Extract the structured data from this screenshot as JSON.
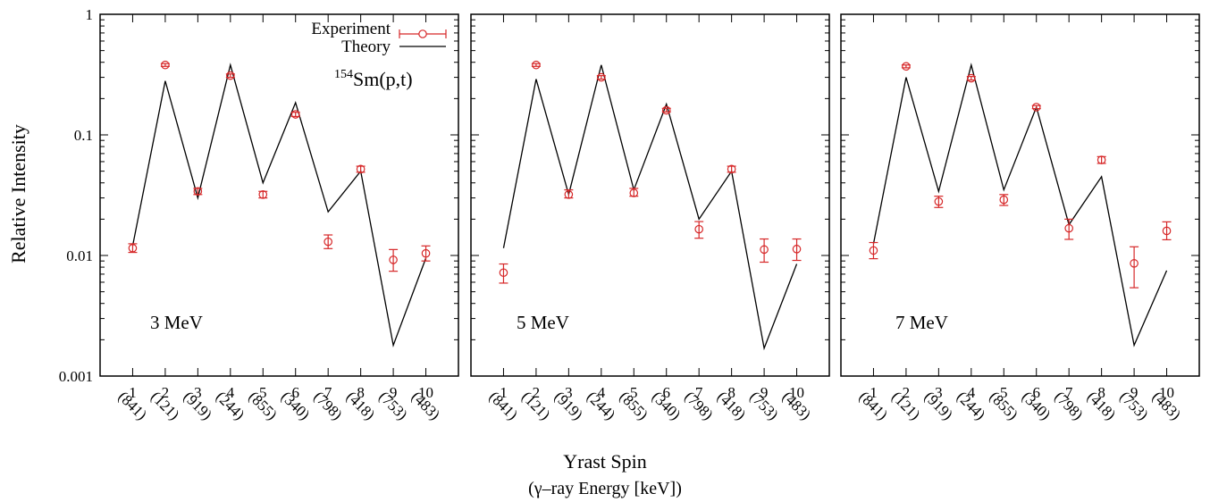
{
  "figure": {
    "ylabel": "Relative Intensity",
    "xlabel": "Yrast Spin",
    "xlabel2": "(γ–ray Energy [keV])",
    "legend": {
      "experiment": "Experiment",
      "theory": "Theory"
    },
    "reaction": {
      "sup": "154",
      "rest": "Sm(p,t)"
    },
    "colors": {
      "experiment": "#d62728",
      "theory": "#000000",
      "axes": "#000000"
    }
  },
  "chart_data": [
    {
      "type": "line",
      "label": "3 MeV",
      "yscale": "log",
      "ylim": [
        0.001,
        1
      ],
      "yticks": [
        "0.001",
        "0.01",
        "0.1",
        "1"
      ],
      "xlim": [
        0,
        11
      ],
      "x": [
        1,
        2,
        3,
        4,
        5,
        6,
        7,
        8,
        9,
        10
      ],
      "xticklabels": [
        "1",
        "2",
        "3",
        "4",
        "5",
        "6",
        "7",
        "8",
        "9",
        "10"
      ],
      "energies": [
        "(841)",
        "(121)",
        "(919)",
        "(244)",
        "(855)",
        "(340)",
        "(798)",
        "(418)",
        "(753)",
        "(483)"
      ],
      "series": [
        {
          "name": "Experiment",
          "style": "points-errorbars",
          "values": [
            0.0115,
            0.38,
            0.034,
            0.31,
            0.032,
            0.148,
            0.013,
            0.052,
            0.0092,
            0.0104
          ],
          "errors": [
            [
              0.0106,
              0.0125
            ],
            [
              0.37,
              0.39
            ],
            [
              0.032,
              0.036
            ],
            [
              0.3,
              0.32
            ],
            [
              0.03,
              0.034
            ],
            [
              0.142,
              0.154
            ],
            [
              0.0114,
              0.0148
            ],
            [
              0.049,
              0.055
            ],
            [
              0.0074,
              0.0112
            ],
            [
              0.009,
              0.012
            ]
          ]
        },
        {
          "name": "Theory",
          "style": "line",
          "values": [
            0.012,
            0.28,
            0.03,
            0.38,
            0.04,
            0.185,
            0.023,
            0.05,
            0.0018,
            0.0095
          ]
        }
      ]
    },
    {
      "type": "line",
      "label": "5 MeV",
      "yscale": "log",
      "ylim": [
        0.001,
        1
      ],
      "yticks": [
        "0.001",
        "0.01",
        "0.1",
        "1"
      ],
      "xlim": [
        0,
        11
      ],
      "x": [
        1,
        2,
        3,
        4,
        5,
        6,
        7,
        8,
        9,
        10
      ],
      "xticklabels": [
        "1",
        "2",
        "3",
        "4",
        "5",
        "6",
        "7",
        "8",
        "9",
        "10"
      ],
      "energies": [
        "(841)",
        "(121)",
        "(919)",
        "(244)",
        "(855)",
        "(340)",
        "(798)",
        "(418)",
        "(753)",
        "(483)"
      ],
      "series": [
        {
          "name": "Experiment",
          "style": "points-errorbars",
          "values": [
            0.0072,
            0.38,
            0.032,
            0.3,
            0.033,
            0.16,
            0.0165,
            0.052,
            0.0112,
            0.0113
          ],
          "errors": [
            [
              0.0059,
              0.0085
            ],
            [
              0.37,
              0.39
            ],
            [
              0.03,
              0.035
            ],
            [
              0.29,
              0.31
            ],
            [
              0.031,
              0.036
            ],
            [
              0.155,
              0.166
            ],
            [
              0.0139,
              0.0191
            ],
            [
              0.049,
              0.055
            ],
            [
              0.0088,
              0.0137
            ],
            [
              0.0091,
              0.0137
            ]
          ]
        },
        {
          "name": "Theory",
          "style": "line",
          "values": [
            0.0115,
            0.29,
            0.032,
            0.38,
            0.035,
            0.18,
            0.02,
            0.05,
            0.0017,
            0.0085
          ]
        }
      ]
    },
    {
      "type": "line",
      "label": "7 MeV",
      "yscale": "log",
      "ylim": [
        0.001,
        1
      ],
      "yticks": [
        "0.001",
        "0.01",
        "0.1",
        "1"
      ],
      "xlim": [
        0,
        11
      ],
      "x": [
        1,
        2,
        3,
        4,
        5,
        6,
        7,
        8,
        9,
        10
      ],
      "xticklabels": [
        "1",
        "2",
        "3",
        "4",
        "5",
        "6",
        "7",
        "8",
        "9",
        "10"
      ],
      "energies": [
        "(841)",
        "(121)",
        "(919)",
        "(244)",
        "(855)",
        "(340)",
        "(798)",
        "(418)",
        "(753)",
        "(483)"
      ],
      "series": [
        {
          "name": "Experiment",
          "style": "points-errorbars",
          "values": [
            0.011,
            0.37,
            0.028,
            0.295,
            0.029,
            0.17,
            0.0168,
            0.062,
            0.0086,
            0.016
          ],
          "errors": [
            [
              0.0094,
              0.0128
            ],
            [
              0.36,
              0.38
            ],
            [
              0.025,
              0.031
            ],
            [
              0.285,
              0.305
            ],
            [
              0.026,
              0.032
            ],
            [
              0.165,
              0.175
            ],
            [
              0.0136,
              0.02
            ],
            [
              0.058,
              0.066
            ],
            [
              0.0054,
              0.0118
            ],
            [
              0.0135,
              0.019
            ]
          ]
        },
        {
          "name": "Theory",
          "style": "line",
          "values": [
            0.0125,
            0.3,
            0.034,
            0.38,
            0.035,
            0.17,
            0.018,
            0.045,
            0.0018,
            0.0075
          ]
        }
      ]
    }
  ]
}
